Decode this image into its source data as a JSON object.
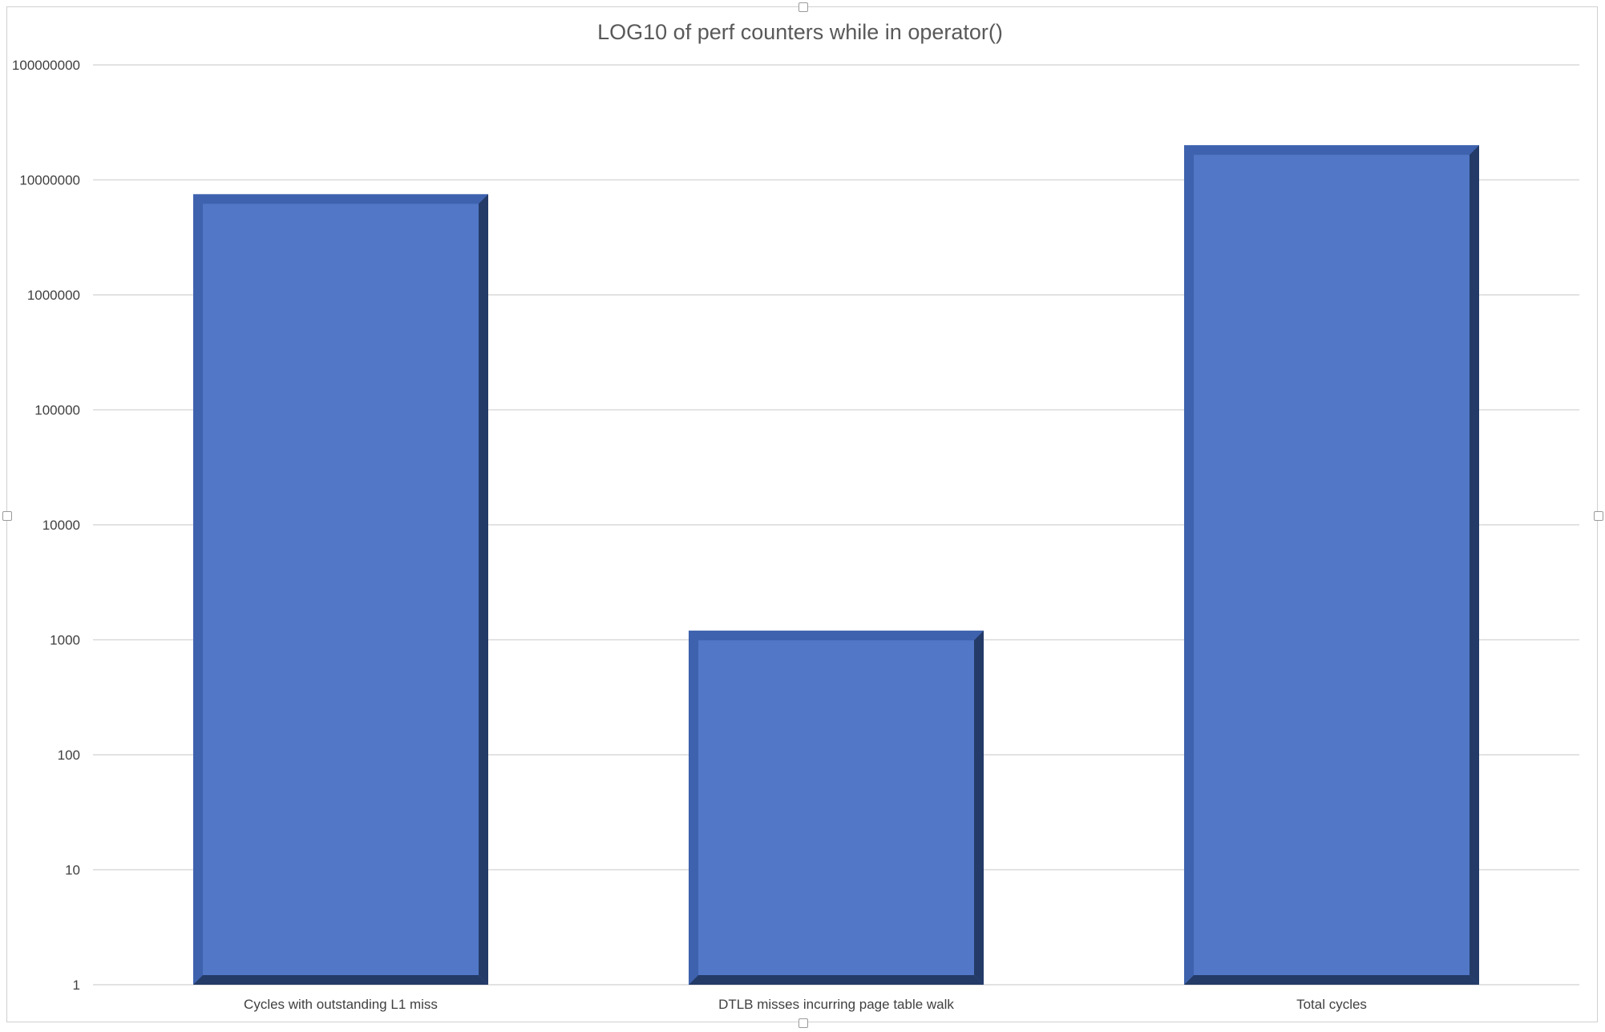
{
  "chart_data": {
    "type": "bar",
    "title": "LOG10 of perf counters while in operator()",
    "categories": [
      "Cycles with outstanding L1 miss",
      "DTLB misses incurring page table walk",
      "Total cycles"
    ],
    "values": [
      7500000,
      1200,
      20000000
    ],
    "yscale": "log",
    "ylim": [
      1,
      100000000
    ],
    "yticks": [
      "1",
      "10",
      "100",
      "1000",
      "10000",
      "100000",
      "1000000",
      "10000000",
      "100000000"
    ],
    "grid": true,
    "legend": "none",
    "colors": {
      "bar": "#5177c6",
      "bar_dark": "#243b68",
      "bar_light": "#3e62ad"
    }
  }
}
